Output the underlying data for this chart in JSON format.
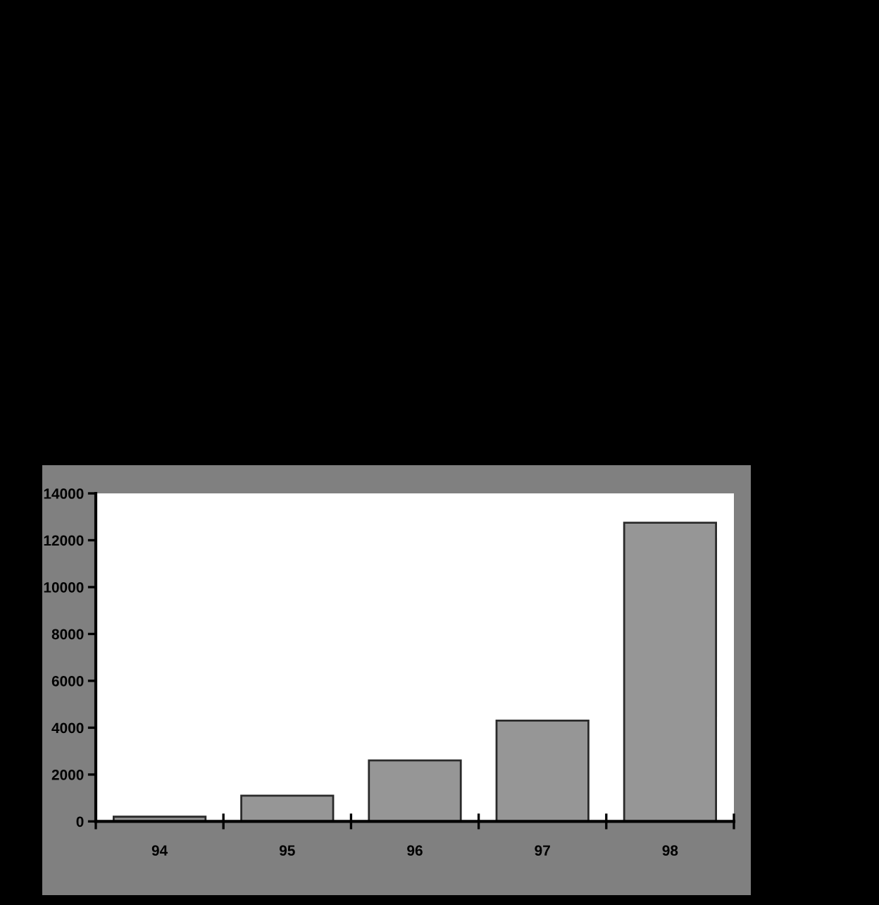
{
  "chart_data": {
    "type": "bar",
    "categories": [
      "94",
      "95",
      "96",
      "97",
      "98"
    ],
    "values": [
      200,
      1100,
      2600,
      4300,
      12750
    ],
    "color": "#969696",
    "ylim": [
      0,
      14000
    ],
    "yticks": [
      0,
      2000,
      4000,
      6000,
      8000,
      10000,
      12000,
      14000
    ]
  }
}
